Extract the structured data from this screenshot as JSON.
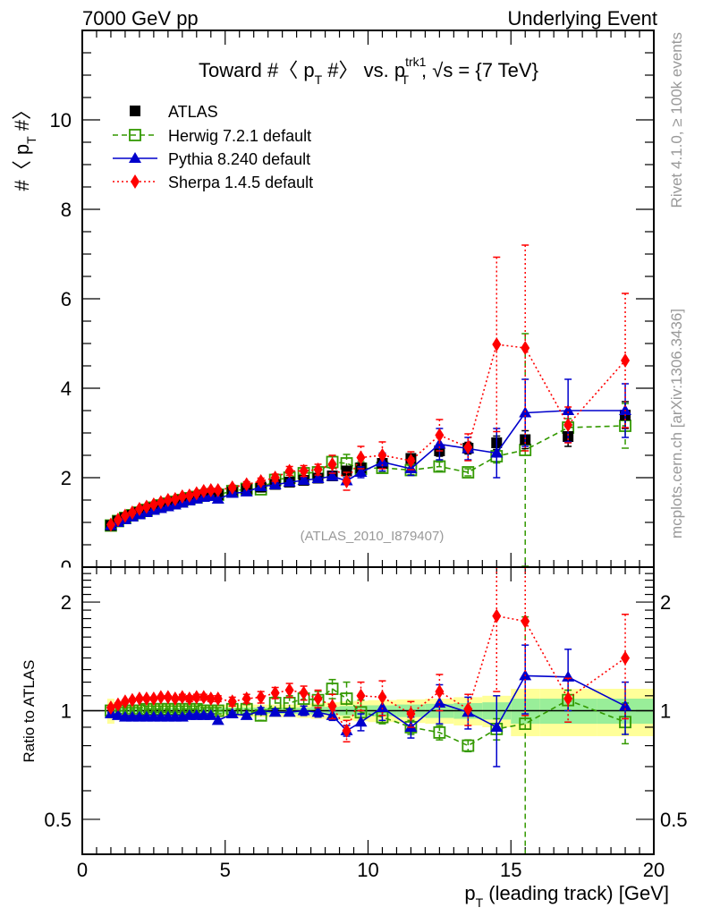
{
  "header": {
    "left": "7000 GeV pp",
    "right": "Underlying Event"
  },
  "side_labels": {
    "rivet": "Rivet 4.1.0, ≥ 100k events",
    "mcplots": "mcplots.cern.ch [arXiv:1306.3436]"
  },
  "chart_data": [
    {
      "type": "line",
      "panel": "main",
      "title": "Toward #〈 p_T #〉 vs. p_T^trk1, √s = {7 TeV}",
      "title_parts": {
        "a": "Toward #〈 p",
        "sub1": "T",
        "b": " #〉 vs. p",
        "sup": "trk1",
        "sub2": "T",
        "c": ", √s = {7 TeV}"
      },
      "ylabel": "#〈 p_T #〉",
      "ylabel_parts": {
        "a": "#〈 p",
        "sub": "T",
        "b": " #〉"
      },
      "xlim": [
        0,
        20
      ],
      "ylim": [
        0,
        12
      ],
      "yticks": [
        0,
        2,
        4,
        6,
        8,
        10
      ],
      "ytick_labels": [
        "0",
        "2",
        "4",
        "6",
        "8",
        "10"
      ],
      "watermark": "(ATLAS_2010_I879407)",
      "legend_position": "top-left",
      "x": [
        1.0,
        1.25,
        1.5,
        1.75,
        2.0,
        2.25,
        2.5,
        2.75,
        3.0,
        3.25,
        3.5,
        3.75,
        4.0,
        4.25,
        4.5,
        4.75,
        5.25,
        5.75,
        6.25,
        6.75,
        7.25,
        7.75,
        8.25,
        8.75,
        9.25,
        9.75,
        10.5,
        11.5,
        12.5,
        13.5,
        14.5,
        15.5,
        17.0,
        19.0
      ],
      "series": [
        {
          "name": "ATLAS",
          "style": "data",
          "color": "#000000",
          "values": [
            0.93,
            1.03,
            1.1,
            1.16,
            1.22,
            1.27,
            1.32,
            1.37,
            1.41,
            1.45,
            1.49,
            1.53,
            1.56,
            1.6,
            1.63,
            1.62,
            1.68,
            1.74,
            1.79,
            1.85,
            1.9,
            1.94,
            1.99,
            2.04,
            2.15,
            2.22,
            2.32,
            2.43,
            2.6,
            2.66,
            2.78,
            2.85,
            2.92,
            3.4
          ],
          "errors": [
            0.02,
            0.02,
            0.02,
            0.02,
            0.02,
            0.02,
            0.02,
            0.02,
            0.02,
            0.02,
            0.02,
            0.02,
            0.02,
            0.02,
            0.02,
            0.02,
            0.03,
            0.03,
            0.03,
            0.03,
            0.04,
            0.04,
            0.05,
            0.05,
            0.06,
            0.07,
            0.08,
            0.1,
            0.12,
            0.13,
            0.15,
            0.2,
            0.22,
            0.3
          ]
        },
        {
          "name": "Herwig 7.2.1 default",
          "style": "dashed",
          "color": "#339900",
          "values": [
            0.93,
            1.03,
            1.1,
            1.16,
            1.22,
            1.28,
            1.33,
            1.38,
            1.42,
            1.46,
            1.5,
            1.54,
            1.57,
            1.6,
            1.63,
            1.62,
            1.7,
            1.75,
            1.74,
            1.95,
            2.0,
            2.1,
            2.12,
            2.35,
            2.32,
            2.2,
            2.22,
            2.17,
            2.25,
            2.12,
            2.48,
            2.62,
            3.12,
            3.16
          ],
          "errors": [
            0.02,
            0.02,
            0.02,
            0.02,
            0.02,
            0.02,
            0.02,
            0.02,
            0.02,
            0.02,
            0.03,
            0.03,
            0.03,
            0.03,
            0.04,
            0.04,
            0.05,
            0.06,
            0.06,
            0.08,
            0.09,
            0.1,
            0.12,
            0.14,
            0.2,
            0.16,
            0.1,
            0.1,
            0.1,
            0.08,
            0.15,
            2.6,
            0.2,
            0.5
          ]
        },
        {
          "name": "Pythia 8.240 default",
          "style": "solid",
          "color": "#0000cc",
          "values": [
            0.93,
            1.0,
            1.06,
            1.12,
            1.17,
            1.22,
            1.27,
            1.31,
            1.35,
            1.39,
            1.43,
            1.48,
            1.52,
            1.56,
            1.58,
            1.52,
            1.65,
            1.68,
            1.8,
            1.84,
            1.9,
            1.94,
            1.98,
            2.03,
            1.93,
            2.12,
            2.35,
            2.2,
            2.75,
            2.65,
            2.55,
            3.45,
            3.5,
            3.5
          ],
          "errors": [
            0.02,
            0.02,
            0.02,
            0.02,
            0.02,
            0.02,
            0.02,
            0.02,
            0.02,
            0.02,
            0.02,
            0.02,
            0.02,
            0.02,
            0.02,
            0.02,
            0.03,
            0.03,
            0.04,
            0.05,
            0.05,
            0.06,
            0.07,
            0.08,
            0.07,
            0.12,
            0.2,
            0.15,
            0.35,
            0.25,
            0.55,
            0.75,
            0.7,
            0.6
          ]
        },
        {
          "name": "Sherpa 1.4.5 default",
          "style": "dotted",
          "color": "#ff0000",
          "values": [
            0.95,
            1.06,
            1.15,
            1.22,
            1.3,
            1.35,
            1.4,
            1.45,
            1.5,
            1.52,
            1.58,
            1.6,
            1.65,
            1.7,
            1.72,
            1.72,
            1.78,
            1.85,
            1.92,
            2.0,
            2.15,
            2.15,
            2.18,
            2.3,
            1.92,
            2.45,
            2.5,
            2.38,
            2.95,
            2.68,
            4.98,
            4.9,
            3.18,
            4.62
          ],
          "errors": [
            0.02,
            0.02,
            0.02,
            0.02,
            0.02,
            0.02,
            0.02,
            0.02,
            0.02,
            0.02,
            0.03,
            0.03,
            0.03,
            0.03,
            0.04,
            0.04,
            0.05,
            0.06,
            0.07,
            0.08,
            0.1,
            0.12,
            0.12,
            0.2,
            0.2,
            0.25,
            0.3,
            0.2,
            0.35,
            0.3,
            1.95,
            2.3,
            0.4,
            1.5
          ]
        }
      ]
    },
    {
      "type": "line",
      "panel": "ratio",
      "ylabel": "Ratio to ATLAS",
      "xlabel": "p_T (leading track) [GeV]",
      "xlabel_parts": {
        "a": "p",
        "sub": "T",
        "b": " (leading track) [GeV]"
      },
      "xlim": [
        0,
        20
      ],
      "ylim": [
        0.4,
        2.5
      ],
      "yscale": "log",
      "xticks": [
        0,
        5,
        10,
        15,
        20
      ],
      "xtick_labels": [
        "0",
        "5",
        "10",
        "15",
        "20"
      ],
      "yticks": [
        0.5,
        1,
        2
      ],
      "ytick_labels": [
        "0.5",
        "1",
        "2"
      ],
      "band_edges": [
        0.875,
        1.125,
        1.375,
        1.625,
        1.875,
        2.125,
        2.375,
        2.625,
        2.875,
        3.125,
        3.375,
        3.625,
        3.875,
        4.125,
        4.375,
        4.625,
        5.0,
        5.5,
        6.0,
        6.5,
        7.0,
        7.5,
        8.0,
        8.5,
        9.0,
        9.5,
        10.0,
        11.0,
        12.0,
        13.0,
        14.0,
        15.0,
        16.0,
        18.0,
        20.0
      ],
      "band_inner": [
        0.03,
        0.02,
        0.02,
        0.02,
        0.02,
        0.02,
        0.02,
        0.02,
        0.02,
        0.02,
        0.02,
        0.02,
        0.02,
        0.02,
        0.02,
        0.02,
        0.02,
        0.02,
        0.02,
        0.02,
        0.02,
        0.02,
        0.025,
        0.025,
        0.03,
        0.035,
        0.035,
        0.04,
        0.045,
        0.05,
        0.055,
        0.08,
        0.08,
        0.08,
        0.09
      ],
      "band_outer": [
        0.08,
        0.04,
        0.04,
        0.04,
        0.04,
        0.04,
        0.04,
        0.04,
        0.04,
        0.04,
        0.04,
        0.04,
        0.04,
        0.04,
        0.04,
        0.04,
        0.04,
        0.04,
        0.04,
        0.04,
        0.04,
        0.045,
        0.05,
        0.055,
        0.06,
        0.065,
        0.07,
        0.075,
        0.08,
        0.09,
        0.1,
        0.15,
        0.15,
        0.15,
        0.17
      ],
      "band_colors": {
        "inner": "#99ee99",
        "outer": "#ffff99"
      },
      "x": [
        1.0,
        1.25,
        1.5,
        1.75,
        2.0,
        2.25,
        2.5,
        2.75,
        3.0,
        3.25,
        3.5,
        3.75,
        4.0,
        4.25,
        4.5,
        4.75,
        5.25,
        5.75,
        6.25,
        6.75,
        7.25,
        7.75,
        8.25,
        8.75,
        9.25,
        9.75,
        10.5,
        11.5,
        12.5,
        13.5,
        14.5,
        15.5,
        17.0,
        19.0
      ],
      "series": [
        {
          "name": "Herwig 7.2.1 default",
          "style": "dashed",
          "color": "#339900",
          "values": [
            1.0,
            1.0,
            1.0,
            1.0,
            1.0,
            1.01,
            1.01,
            1.01,
            1.01,
            1.01,
            1.01,
            1.01,
            1.01,
            1.0,
            1.0,
            1.0,
            1.01,
            1.01,
            0.97,
            1.05,
            1.05,
            1.08,
            1.07,
            1.15,
            1.08,
            0.99,
            0.96,
            0.9,
            0.87,
            0.8,
            0.89,
            0.92,
            1.07,
            0.93
          ],
          "errors": [
            0.02,
            0.02,
            0.02,
            0.02,
            0.02,
            0.02,
            0.02,
            0.02,
            0.02,
            0.02,
            0.02,
            0.02,
            0.02,
            0.02,
            0.02,
            0.02,
            0.03,
            0.03,
            0.03,
            0.04,
            0.05,
            0.05,
            0.06,
            0.07,
            0.12,
            0.08,
            0.04,
            0.04,
            0.04,
            0.03,
            0.06,
            0.9,
            0.07,
            0.12
          ]
        },
        {
          "name": "Pythia 8.240 default",
          "style": "solid",
          "color": "#0000cc",
          "values": [
            0.98,
            0.97,
            0.96,
            0.96,
            0.96,
            0.96,
            0.96,
            0.96,
            0.96,
            0.96,
            0.96,
            0.97,
            0.97,
            0.97,
            0.97,
            0.94,
            0.98,
            0.97,
            1.0,
            0.99,
            0.99,
            1.0,
            0.99,
            0.97,
            0.88,
            0.93,
            1.02,
            0.9,
            1.05,
            0.99,
            0.9,
            1.25,
            1.24,
            1.03
          ],
          "errors": [
            0.01,
            0.01,
            0.01,
            0.01,
            0.01,
            0.01,
            0.01,
            0.01,
            0.01,
            0.01,
            0.01,
            0.01,
            0.01,
            0.01,
            0.01,
            0.01,
            0.01,
            0.01,
            0.02,
            0.02,
            0.02,
            0.03,
            0.03,
            0.03,
            0.03,
            0.05,
            0.08,
            0.06,
            0.13,
            0.1,
            0.2,
            0.27,
            0.24,
            0.17
          ]
        },
        {
          "name": "Sherpa 1.4.5 default",
          "style": "dotted",
          "color": "#ff0000",
          "values": [
            1.02,
            1.04,
            1.06,
            1.07,
            1.08,
            1.08,
            1.08,
            1.09,
            1.09,
            1.08,
            1.09,
            1.08,
            1.09,
            1.09,
            1.08,
            1.08,
            1.06,
            1.08,
            1.09,
            1.12,
            1.14,
            1.12,
            1.08,
            1.03,
            0.88,
            1.1,
            1.09,
            0.98,
            1.13,
            1.01,
            1.83,
            1.77,
            1.08,
            1.4
          ],
          "errors": [
            0.01,
            0.01,
            0.01,
            0.01,
            0.01,
            0.01,
            0.01,
            0.01,
            0.01,
            0.01,
            0.02,
            0.02,
            0.02,
            0.02,
            0.02,
            0.02,
            0.03,
            0.03,
            0.04,
            0.04,
            0.05,
            0.05,
            0.06,
            0.08,
            0.06,
            0.1,
            0.12,
            0.08,
            0.13,
            0.1,
            0.7,
            0.8,
            0.15,
            0.45
          ]
        }
      ]
    }
  ]
}
